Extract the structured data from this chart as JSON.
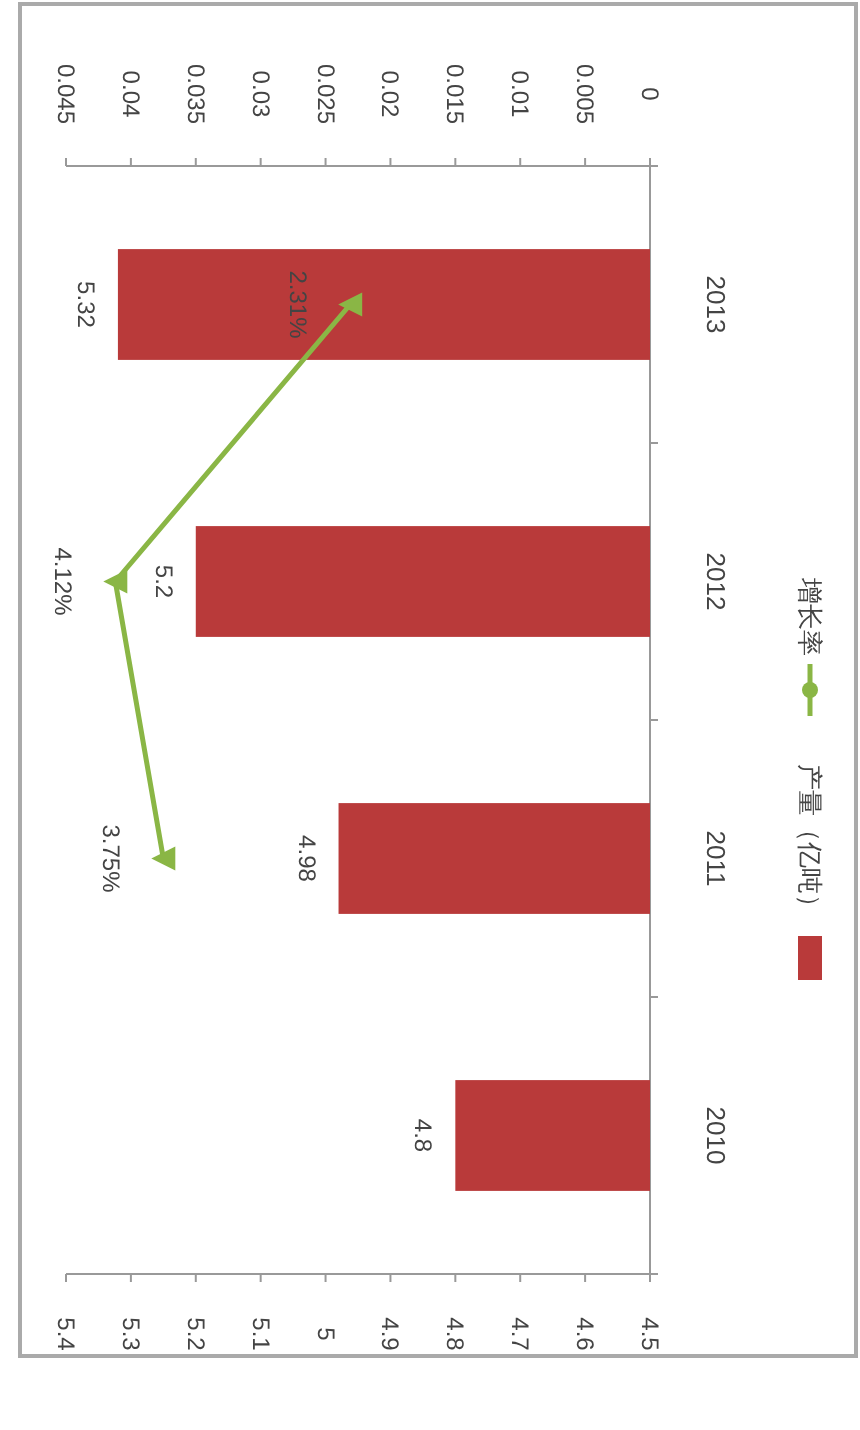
{
  "chart_data": {
    "type": "bar",
    "orientation": "horizontal",
    "categories": [
      "2013",
      "2012",
      "2011",
      "2010"
    ],
    "series": [
      {
        "name": "产量（亿吨）",
        "color": "#b93a3a",
        "values": [
          5.32,
          5.2,
          4.98,
          4.8
        ],
        "value_labels": [
          "5.32",
          "5.2",
          "4.98",
          "4.8"
        ]
      },
      {
        "name": "增长率",
        "type": "line",
        "axis": "x2",
        "color": "#8ab645",
        "marker": "triangle",
        "values": [
          0.0231,
          0.0412,
          0.0375,
          null
        ],
        "value_labels": [
          "2.31%",
          "4.12%",
          "3.75%",
          null
        ]
      }
    ],
    "xlim": [
      5.4,
      4.5
    ],
    "xticks": [
      5.4,
      5.3,
      5.2,
      5.1,
      5,
      4.9,
      4.8,
      4.7,
      4.6,
      4.5
    ],
    "x2lim": [
      0.045,
      0
    ],
    "x2ticks": [
      0.045,
      0.04,
      0.035,
      0.03,
      0.025,
      0.02,
      0.015,
      0.01,
      0.005,
      0
    ],
    "legend": "right",
    "grid": false
  }
}
